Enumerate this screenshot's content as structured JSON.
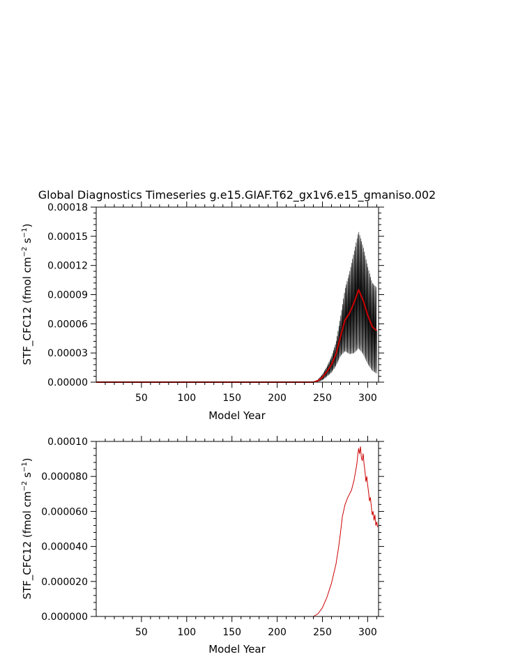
{
  "title": "Global Diagnostics Timeseries g.e15.GIAF.T62_gx1v6.e15_gmaniso.002",
  "chart_data": [
    {
      "type": "line",
      "xlabel": "Model Year",
      "ylabel_main": "STF_CFC12 (fmol cm",
      "ylabel_exp1": "−2",
      "ylabel_mid": " s",
      "ylabel_exp2": "−1",
      "ylabel_end": ")",
      "xlim": [
        0,
        312
      ],
      "ylim": [
        0,
        0.00018
      ],
      "xticks": [
        50,
        100,
        150,
        200,
        250,
        300
      ],
      "xtick_labels": [
        "50",
        "100",
        "150",
        "200",
        "250",
        "300"
      ],
      "yticks": [
        0,
        3e-05,
        6e-05,
        9e-05,
        0.00012,
        0.00015,
        0.00018
      ],
      "ytick_labels": [
        "0.00000",
        "0.00003",
        "0.00006",
        "0.00009",
        "0.00012",
        "0.00015",
        "0.00018"
      ],
      "series": [
        {
          "role": "monthly",
          "color": "#000000",
          "x": [
            0,
            240,
            245,
            250,
            255,
            260,
            265,
            270,
            275,
            280,
            285,
            290,
            295,
            300,
            305,
            310
          ],
          "y": [
            0,
            0,
            1.5e-06,
            5e-06,
            1.1e-05,
            1.8e-05,
            2.9e-05,
            4.7e-05,
            6.4e-05,
            7.1e-05,
            8.2e-05,
            9.5e-05,
            8.4e-05,
            6.9e-05,
            5.7e-05,
            5.3e-05
          ],
          "amplitude": [
            0,
            0,
            1e-06,
            3e-06,
            5e-06,
            8e-06,
            1.2e-05,
            2e-05,
            3.2e-05,
            4.2e-05,
            5.2e-05,
            6e-05,
            5.5e-05,
            5e-05,
            4.5e-05,
            4.4e-05
          ]
        },
        {
          "role": "annual",
          "color": "#cc0000",
          "x": [
            0,
            240,
            245,
            250,
            255,
            260,
            265,
            270,
            275,
            280,
            285,
            290,
            295,
            300,
            305,
            310
          ],
          "y": [
            0,
            0,
            1.5e-06,
            5e-06,
            1.1e-05,
            1.8e-05,
            2.9e-05,
            4.7e-05,
            6.4e-05,
            7.1e-05,
            8.2e-05,
            9.5e-05,
            8.4e-05,
            6.9e-05,
            5.7e-05,
            5.3e-05
          ]
        }
      ]
    },
    {
      "type": "line",
      "xlabel": "Model Year",
      "ylabel_main": "STF_CFC12 (fmol cm",
      "ylabel_exp1": "−2",
      "ylabel_mid": " s",
      "ylabel_exp2": "−1",
      "ylabel_end": ")",
      "xlim": [
        0,
        312
      ],
      "ylim": [
        0,
        0.0001
      ],
      "xticks": [
        50,
        100,
        150,
        200,
        250,
        300
      ],
      "xtick_labels": [
        "50",
        "100",
        "150",
        "200",
        "250",
        "300"
      ],
      "yticks": [
        0,
        2e-05,
        4e-05,
        6e-05,
        8e-05,
        0.0001
      ],
      "ytick_labels": [
        "0.000000",
        "0.000020",
        "0.000040",
        "0.000060",
        "0.000080",
        "0.00010"
      ],
      "series": [
        {
          "role": "annual",
          "color": "#cc0000",
          "x": [
            0,
            240,
            245,
            250,
            255,
            260,
            265,
            268,
            270,
            272,
            275,
            278,
            280,
            282,
            285,
            287,
            288,
            289,
            290,
            291,
            292,
            293,
            294,
            295,
            296,
            297,
            298,
            299,
            300,
            301,
            302,
            303,
            304,
            305,
            306,
            307,
            308,
            309,
            310,
            311
          ],
          "y": [
            0,
            0,
            1.5e-06,
            5e-06,
            1.1e-05,
            1.9e-05,
            3e-05,
            4e-05,
            4.8e-05,
            5.7e-05,
            6.4e-05,
            6.8e-05,
            7e-05,
            7.2e-05,
            7.8e-05,
            8.4e-05,
            8.7e-05,
            9.2e-05,
            9.6e-05,
            9.3e-05,
            9.7e-05,
            9.1e-05,
            8.9e-05,
            9.3e-05,
            8.7e-05,
            8.3e-05,
            7.7e-05,
            8e-05,
            7.5e-05,
            7.1e-05,
            6.6e-05,
            6.8e-05,
            6.3e-05,
            5.8e-05,
            6e-05,
            5.5e-05,
            5.8e-05,
            5.2e-05,
            5.4e-05,
            5.1e-05
          ]
        }
      ]
    }
  ]
}
